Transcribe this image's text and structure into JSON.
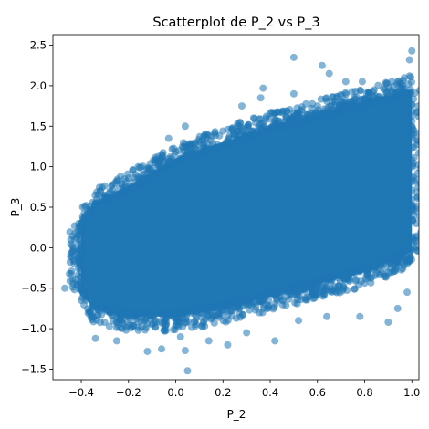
{
  "chart_data": {
    "type": "scatter",
    "title": "Scatterplot de P_2 vs P_3",
    "xlabel": "P_2",
    "ylabel": "P_3",
    "xlim": [
      -0.52,
      1.03
    ],
    "ylim": [
      -1.63,
      2.63
    ],
    "xticks": [
      -0.4,
      -0.2,
      0.0,
      0.2,
      0.4,
      0.6,
      0.8,
      1.0
    ],
    "xtick_labels": [
      "−0.4",
      "−0.2",
      "0.0",
      "0.2",
      "0.4",
      "0.6",
      "0.8",
      "1.0"
    ],
    "yticks": [
      -1.5,
      -1.0,
      -0.5,
      0.0,
      0.5,
      1.0,
      1.5,
      2.0,
      2.5
    ],
    "ytick_labels": [
      "−1.5",
      "−1.0",
      "−0.5",
      "0.0",
      "0.5",
      "1.0",
      "1.5",
      "2.0",
      "2.5"
    ],
    "grid": false,
    "marker_color": "#1f77b4",
    "marker_alpha": 0.55,
    "dense_region": {
      "description": "Dense point cloud between approx. P_2=-0.4 and 1.0, trend rising from about P_3 -0.6..0.6 at left to -0.2..1.9 at right",
      "band": [
        {
          "x": -0.4,
          "y_low": -0.55,
          "y_high": 0.3
        },
        {
          "x": -0.35,
          "y_low": -0.75,
          "y_high": 0.55
        },
        {
          "x": -0.2,
          "y_low": -0.85,
          "y_high": 0.75
        },
        {
          "x": 0.0,
          "y_low": -0.85,
          "y_high": 1.1
        },
        {
          "x": 0.2,
          "y_low": -0.75,
          "y_high": 1.3
        },
        {
          "x": 0.4,
          "y_low": -0.6,
          "y_high": 1.5
        },
        {
          "x": 0.6,
          "y_low": -0.45,
          "y_high": 1.65
        },
        {
          "x": 0.8,
          "y_low": -0.3,
          "y_high": 1.8
        },
        {
          "x": 1.0,
          "y_low": -0.05,
          "y_high": 1.95
        }
      ]
    },
    "outliers": [
      {
        "x": 0.5,
        "y": 2.35
      },
      {
        "x": 0.62,
        "y": 2.25
      },
      {
        "x": 0.65,
        "y": 2.15
      },
      {
        "x": 1.0,
        "y": 2.43
      },
      {
        "x": 0.99,
        "y": 2.32
      },
      {
        "x": 0.99,
        "y": 2.12
      },
      {
        "x": 0.94,
        "y": 2.05
      },
      {
        "x": 0.79,
        "y": 2.05
      },
      {
        "x": 0.72,
        "y": 2.05
      },
      {
        "x": 0.37,
        "y": 1.97
      },
      {
        "x": 0.36,
        "y": 1.85
      },
      {
        "x": 0.28,
        "y": 1.75
      },
      {
        "x": 0.5,
        "y": 1.9
      },
      {
        "x": 0.04,
        "y": 1.5
      },
      {
        "x": -0.03,
        "y": 1.35
      },
      {
        "x": -0.38,
        "y": 0.52
      },
      {
        "x": -0.41,
        "y": 0.3
      },
      {
        "x": -0.45,
        "y": -0.32
      },
      {
        "x": -0.47,
        "y": -0.5
      },
      {
        "x": -0.4,
        "y": -0.65
      },
      {
        "x": -0.36,
        "y": -0.8
      },
      {
        "x": -0.34,
        "y": -1.12
      },
      {
        "x": -0.25,
        "y": -1.15
      },
      {
        "x": -0.12,
        "y": -1.28
      },
      {
        "x": -0.06,
        "y": -1.25
      },
      {
        "x": 0.04,
        "y": -1.27
      },
      {
        "x": 0.05,
        "y": -1.52
      },
      {
        "x": 0.02,
        "y": -1.1
      },
      {
        "x": 0.14,
        "y": -1.15
      },
      {
        "x": 0.22,
        "y": -1.2
      },
      {
        "x": 0.3,
        "y": -1.05
      },
      {
        "x": 0.42,
        "y": -1.15
      },
      {
        "x": 0.52,
        "y": -0.9
      },
      {
        "x": 0.64,
        "y": -0.85
      },
      {
        "x": 0.78,
        "y": -0.85
      },
      {
        "x": 0.9,
        "y": -0.92
      },
      {
        "x": 0.94,
        "y": -0.75
      },
      {
        "x": 0.98,
        "y": -0.55
      }
    ]
  }
}
